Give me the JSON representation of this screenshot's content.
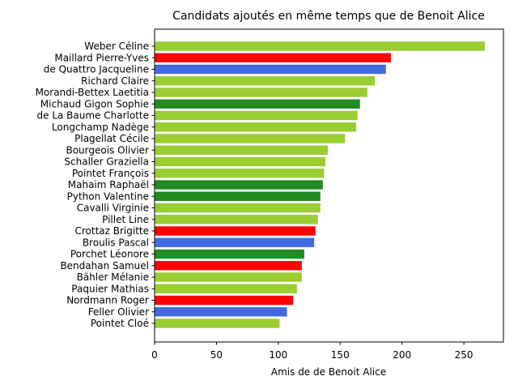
{
  "chart_data": {
    "type": "bar",
    "orientation": "horizontal",
    "title": "Candidats ajoutés en même temps que de Benoit Alice",
    "xlabel": "Amis de de Benoit Alice",
    "ylabel": "",
    "xlim": [
      0,
      282
    ],
    "xticks": [
      0,
      50,
      100,
      150,
      200,
      250
    ],
    "grid": false,
    "colors": {
      "yellowgreen": "#9acd32",
      "red": "#ff0000",
      "blue": "#4169e1",
      "green": "#228b22"
    },
    "bars": [
      {
        "label": "Weber Céline",
        "value": 267,
        "color": "#9acd32"
      },
      {
        "label": "Maillard Pierre-Yves",
        "value": 191,
        "color": "#ff0000"
      },
      {
        "label": "de Quattro Jacqueline",
        "value": 187,
        "color": "#4169e1"
      },
      {
        "label": "Richard Claire",
        "value": 178,
        "color": "#9acd32"
      },
      {
        "label": "Morandi-Bettex Laetitia",
        "value": 172,
        "color": "#9acd32"
      },
      {
        "label": "Michaud Gigon Sophie",
        "value": 166,
        "color": "#228b22"
      },
      {
        "label": "de La Baume Charlotte",
        "value": 164,
        "color": "#9acd32"
      },
      {
        "label": "Longchamp Nadège",
        "value": 163,
        "color": "#9acd32"
      },
      {
        "label": "Plagellat Cécile",
        "value": 154,
        "color": "#9acd32"
      },
      {
        "label": "Bourgeois Olivier",
        "value": 140,
        "color": "#9acd32"
      },
      {
        "label": "Schaller Graziella",
        "value": 138,
        "color": "#9acd32"
      },
      {
        "label": "Pointet François",
        "value": 137,
        "color": "#9acd32"
      },
      {
        "label": "Mahaim Raphaël",
        "value": 136,
        "color": "#228b22"
      },
      {
        "label": "Python Valentine",
        "value": 134,
        "color": "#228b22"
      },
      {
        "label": "Cavalli Virginie",
        "value": 134,
        "color": "#9acd32"
      },
      {
        "label": "Pillet Line",
        "value": 132,
        "color": "#9acd32"
      },
      {
        "label": "Crottaz Brigitte",
        "value": 130,
        "color": "#ff0000"
      },
      {
        "label": "Broulis Pascal",
        "value": 129,
        "color": "#4169e1"
      },
      {
        "label": "Porchet Léonore",
        "value": 121,
        "color": "#228b22"
      },
      {
        "label": "Bendahan Samuel",
        "value": 119,
        "color": "#ff0000"
      },
      {
        "label": "Bähler Mélanie",
        "value": 119,
        "color": "#9acd32"
      },
      {
        "label": "Paquier Mathias",
        "value": 115,
        "color": "#9acd32"
      },
      {
        "label": "Nordmann Roger",
        "value": 112,
        "color": "#ff0000"
      },
      {
        "label": "Feller Olivier",
        "value": 107,
        "color": "#4169e1"
      },
      {
        "label": "Pointet Cloé",
        "value": 101,
        "color": "#9acd32"
      }
    ]
  }
}
